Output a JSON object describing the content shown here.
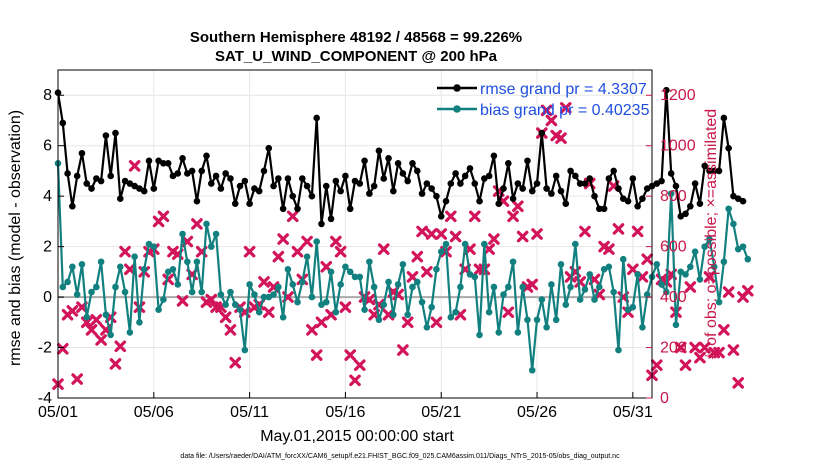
{
  "chart_data": {
    "type": "line",
    "title_line1": "Southern Hemisphere 48192 / 48568 = 99.226%",
    "title_line2": "SAT_U_WIND_COMPONENT @ 200 hPa",
    "xlabel": "May.01,2015 00:00:00 start",
    "ylabel_left": "rmse and bias (model - observation)",
    "ylabel_right": "# of obs: o=possible; ×=assimilated",
    "x_range": [
      1,
      32
    ],
    "x_ticks": [
      1,
      6,
      11,
      16,
      21,
      26,
      31
    ],
    "x_tick_labels": [
      "05/01",
      "05/06",
      "05/11",
      "05/16",
      "05/21",
      "05/26",
      "05/31"
    ],
    "ylim_left": [
      -4,
      9
    ],
    "y_ticks_left": [
      -4,
      -2,
      0,
      2,
      4,
      6,
      8
    ],
    "y_tick_labels_left": [
      "-4",
      "-2",
      "0",
      "2",
      "4",
      "6",
      "8"
    ],
    "ylim_right": [
      0,
      1300
    ],
    "y_ticks_right": [
      0,
      200,
      400,
      600,
      800,
      1000,
      1200
    ],
    "y_tick_labels_right": [
      "0",
      "200",
      "400",
      "600",
      "800",
      "1000",
      "1200"
    ],
    "grid": true,
    "legend": {
      "position": "top-right",
      "entries": [
        "rmse grand pr = 4.3307",
        "bias grand pr = 0.40235"
      ]
    },
    "colors": {
      "rmse": "#000000",
      "bias": "#138080",
      "obs": "#d2145a",
      "zero_line": "#aaaaaa",
      "legend_text": "#1f4fe0"
    },
    "time_step_days": 0.25,
    "series": [
      {
        "name": "rmse",
        "axis": "left",
        "values": [
          8.1,
          6.9,
          4.9,
          3.6,
          4.8,
          5.7,
          4.5,
          4.3,
          4.7,
          4.6,
          6.4,
          4.8,
          6.5,
          3.9,
          4.6,
          4.5,
          4.4,
          4.3,
          4.2,
          5.4,
          4.3,
          5.4,
          5.3,
          5.3,
          4.8,
          4.9,
          5.5,
          4.9,
          5.0,
          3.8,
          5.0,
          5.6,
          4.5,
          4.8,
          4.3,
          4.9,
          4.7,
          3.7,
          4.4,
          4.6,
          3.7,
          4.3,
          4.2,
          5.0,
          5.9,
          4.4,
          4.7,
          3.5,
          4.7,
          4.0,
          3.5,
          4.7,
          4.4,
          4.0,
          7.1,
          2.9,
          4.4,
          3.1,
          4.6,
          4.2,
          4.8,
          3.5,
          4.6,
          4.5,
          5.4,
          4.1,
          4.4,
          5.8,
          4.7,
          5.5,
          4.2,
          5.3,
          4.9,
          4.6,
          5.3,
          5.0,
          4.1,
          4.5,
          4.3,
          4.0,
          3.2,
          3.8,
          4.5,
          4.9,
          4.5,
          4.8,
          5.1,
          4.5,
          3.8,
          4.7,
          4.8,
          5.6,
          3.7,
          4.3,
          5.3,
          3.9,
          4.5,
          4.3,
          5.4,
          4.2,
          4.5,
          6.5,
          4.3,
          4.1,
          4.8,
          4.2,
          3.7,
          5.0,
          4.8,
          4.5,
          4.5,
          4.7,
          4.0,
          3.5,
          3.5,
          4.7,
          5.0,
          4.3,
          3.9,
          3.8,
          4.7,
          3.6,
          3.9,
          4.3,
          4.4,
          4.5,
          4.6,
          8.2,
          4.9,
          4.4,
          3.2,
          3.3,
          3.6,
          4.5,
          3.7,
          5.2,
          5.0,
          5.0,
          5.0,
          7.1,
          5.9,
          4.0,
          3.9,
          3.8
        ]
      },
      {
        "name": "bias",
        "axis": "left",
        "values": [
          5.3,
          0.4,
          0.6,
          1.2,
          0.1,
          1.3,
          -0.8,
          0.2,
          0.4,
          1.4,
          -0.7,
          -1.5,
          0.4,
          1.2,
          0.2,
          -1.4,
          1.6,
          -1.0,
          1.1,
          2.1,
          2.0,
          -0.5,
          -0.1,
          1.0,
          1.1,
          0.5,
          2.5,
          1.4,
          0.2,
          1.4,
          0.2,
          2.9,
          2.0,
          2.5,
          0.1,
          -0.3,
          0.2,
          -0.3,
          -0.5,
          -2.1,
          0.5,
          0.1,
          -0.6,
          0.0,
          0.0,
          0.1,
          0.4,
          -0.8,
          1.1,
          0.5,
          -0.2,
          0.6,
          1.6,
          0.0,
          2.2,
          -0.3,
          -0.2,
          1.0,
          -0.6,
          0.5,
          1.2,
          1.0,
          0.8,
          0.8,
          -0.5,
          1.4,
          0.4,
          -0.9,
          -0.3,
          0.6,
          -0.7,
          0.5,
          1.3,
          -0.7,
          0.4,
          0.6,
          -0.2,
          -1.2,
          -0.4,
          1.1,
          1.8,
          2.1,
          -0.8,
          -0.6,
          0.4,
          2.1,
          0.9,
          0.8,
          -1.5,
          2.1,
          -0.6,
          0.4,
          -1.4,
          0.1,
          0.4,
          1.4,
          -1.4,
          0.4,
          -0.9,
          -2.9,
          -0.9,
          -0.1,
          -1.2,
          0.5,
          -0.9,
          1.3,
          -0.3,
          0.4,
          2.1,
          -0.1,
          0.3,
          0.9,
          -0.1,
          0.4,
          1.1,
          1.2,
          0.2,
          -2.1,
          1.5,
          -0.5,
          -0.4,
          0.9,
          -1.2,
          0.1,
          0.8,
          1.3,
          0.5,
          0.2,
          4.1,
          -1.1,
          1.0,
          0.9,
          1.2,
          1.8,
          0.7,
          2.0,
          2.3,
          1.2,
          -0.2,
          1.4,
          3.5,
          2.9,
          1.9,
          2.0,
          1.5
        ]
      },
      {
        "name": "obs_assimilated",
        "axis": "right",
        "marker": "cross",
        "values": [
          55,
          195,
          330,
          345,
          75,
          360,
          300,
          270,
          310,
          230,
          270,
          320,
          135,
          205,
          580,
          510,
          920,
          360,
          500,
          580,
          590,
          700,
          720,
          470,
          580,
          570,
          385,
          620,
          490,
          690,
          580,
          380,
          390,
          360,
          360,
          320,
          270,
          140,
          360,
          340,
          580,
          360,
          370,
          460,
          340,
          440,
          560,
          630,
          400,
          720,
          580,
          470,
          620,
          270,
          170,
          300,
          520,
          330,
          620,
          580,
          360,
          170,
          70,
          130,
          400,
          390,
          330,
          370,
          590,
          330,
          420,
          410,
          190,
          300,
          480,
          560,
          660,
          500,
          650,
          300,
          650,
          580,
          720,
          640,
          330,
          510,
          590,
          720,
          510,
          510,
          590,
          630,
          820,
          780,
          340,
          720,
          760,
          640,
          440,
          450,
          650,
          1050,
          1140,
          1100,
          1040,
          1030,
          1150,
          480,
          500,
          460,
          660,
          850,
          470,
          410,
          600,
          590,
          840,
          670,
          400,
          340,
          510,
          660,
          480,
          550,
          90,
          130,
          470,
          460,
          490,
          340,
          200,
          130,
          440,
          200,
          160,
          200,
          480,
          180,
          180,
          270,
          420,
          190,
          60,
          400,
          425
        ]
      }
    ],
    "footer": "data file: /Users/raeder/DAI/ATM_forcXX/CAM6_setup/f.e21.FHIST_BGC.f09_025.CAM6assim.011/Diags_NTrS_2015-05/obs_diag_output.nc"
  }
}
